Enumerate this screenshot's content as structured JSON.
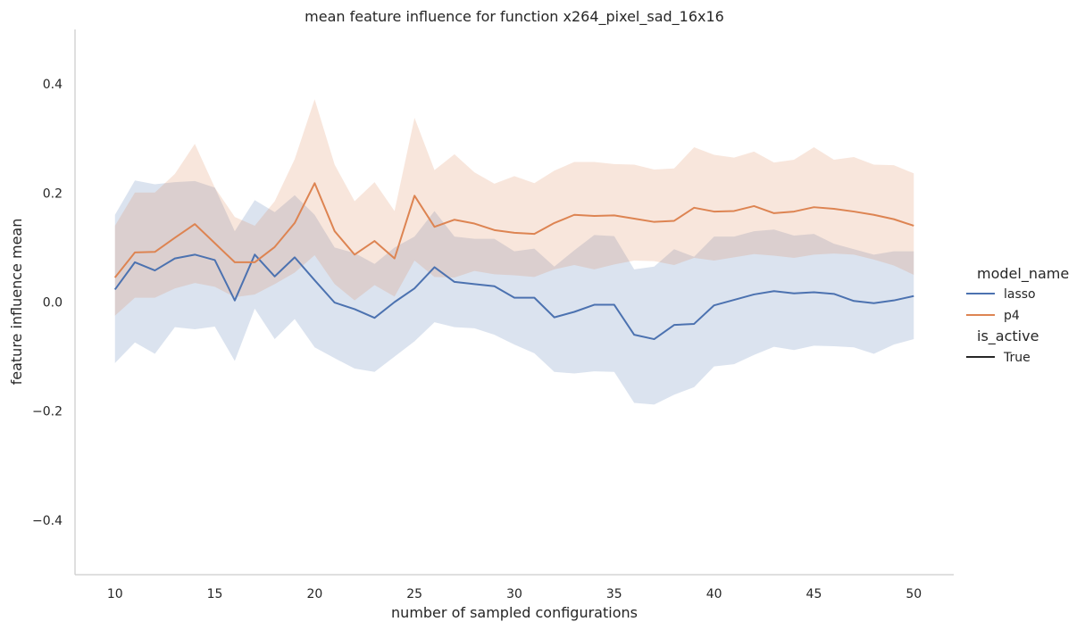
{
  "chart_data": {
    "type": "line",
    "title": "mean feature influence for function x264_pixel_sad_16x16",
    "xlabel": "number of sampled configurations",
    "ylabel": "feature influence mean",
    "xlim": [
      8,
      52
    ],
    "ylim": [
      -0.5,
      0.5
    ],
    "xticks": [
      10,
      15,
      20,
      25,
      30,
      35,
      40,
      45,
      50
    ],
    "xtick_labels": [
      "10",
      "15",
      "20",
      "25",
      "30",
      "35",
      "40",
      "45",
      "50"
    ],
    "yticks": [
      -0.4,
      -0.2,
      0.0,
      0.2,
      0.4
    ],
    "ytick_labels": [
      "−0.4",
      "−0.2",
      "0.0",
      "0.2",
      "0.4"
    ],
    "grid": false,
    "legend": {
      "placement": "right",
      "hue_title": "model_name",
      "style_title": "is_active",
      "style_entries": [
        "True"
      ]
    },
    "x": [
      10,
      11,
      12,
      13,
      14,
      15,
      16,
      17,
      18,
      19,
      20,
      21,
      22,
      23,
      24,
      25,
      26,
      27,
      28,
      29,
      30,
      31,
      32,
      33,
      34,
      35,
      36,
      37,
      38,
      39,
      40,
      41,
      42,
      43,
      44,
      45,
      46,
      47,
      48,
      49,
      50
    ],
    "series": [
      {
        "name": "lasso",
        "color": "#4c72b0",
        "values": [
          0.023,
          0.073,
          0.058,
          0.08,
          0.087,
          0.077,
          0.003,
          0.087,
          0.047,
          0.082,
          0.04,
          -0.001,
          -0.013,
          -0.029,
          0.0,
          0.025,
          0.064,
          0.037,
          0.033,
          0.029,
          0.008,
          0.008,
          -0.028,
          -0.018,
          -0.005,
          -0.005,
          -0.06,
          -0.068,
          -0.042,
          -0.04,
          -0.006,
          0.004,
          0.014,
          0.02,
          0.016,
          0.018,
          0.015,
          0.002,
          -0.002,
          0.003,
          0.011
        ],
        "upper": [
          0.16,
          0.223,
          0.216,
          0.22,
          0.222,
          0.21,
          0.13,
          0.187,
          0.165,
          0.196,
          0.16,
          0.1,
          0.09,
          0.07,
          0.1,
          0.12,
          0.167,
          0.12,
          0.116,
          0.116,
          0.093,
          0.098,
          0.065,
          0.095,
          0.123,
          0.121,
          0.06,
          0.065,
          0.097,
          0.083,
          0.12,
          0.12,
          0.13,
          0.133,
          0.122,
          0.125,
          0.107,
          0.097,
          0.087,
          0.093,
          0.093
        ],
        "lower": [
          -0.112,
          -0.074,
          -0.095,
          -0.046,
          -0.05,
          -0.045,
          -0.108,
          -0.012,
          -0.068,
          -0.031,
          -0.083,
          -0.103,
          -0.122,
          -0.128,
          -0.1,
          -0.072,
          -0.037,
          -0.046,
          -0.048,
          -0.06,
          -0.078,
          -0.094,
          -0.128,
          -0.131,
          -0.127,
          -0.128,
          -0.185,
          -0.188,
          -0.17,
          -0.156,
          -0.118,
          -0.114,
          -0.097,
          -0.082,
          -0.088,
          -0.08,
          -0.081,
          -0.083,
          -0.095,
          -0.078,
          -0.068
        ]
      },
      {
        "name": "p4",
        "color": "#dd8452",
        "values": [
          0.045,
          0.091,
          0.092,
          0.118,
          0.143,
          0.108,
          0.073,
          0.073,
          0.101,
          0.145,
          0.218,
          0.13,
          0.087,
          0.112,
          0.08,
          0.195,
          0.138,
          0.151,
          0.144,
          0.132,
          0.127,
          0.125,
          0.145,
          0.16,
          0.158,
          0.159,
          0.153,
          0.147,
          0.149,
          0.173,
          0.166,
          0.167,
          0.176,
          0.163,
          0.166,
          0.174,
          0.171,
          0.166,
          0.16,
          0.152,
          0.14
        ],
        "upper": [
          0.14,
          0.201,
          0.201,
          0.235,
          0.29,
          0.21,
          0.156,
          0.14,
          0.185,
          0.262,
          0.372,
          0.252,
          0.185,
          0.22,
          0.167,
          0.338,
          0.242,
          0.271,
          0.238,
          0.217,
          0.231,
          0.218,
          0.241,
          0.257,
          0.257,
          0.253,
          0.252,
          0.243,
          0.245,
          0.284,
          0.27,
          0.265,
          0.276,
          0.256,
          0.261,
          0.284,
          0.261,
          0.266,
          0.252,
          0.251,
          0.236
        ],
        "lower": [
          -0.025,
          0.008,
          0.008,
          0.025,
          0.035,
          0.028,
          0.009,
          0.014,
          0.033,
          0.054,
          0.086,
          0.033,
          0.003,
          0.031,
          0.01,
          0.076,
          0.046,
          0.045,
          0.057,
          0.051,
          0.049,
          0.046,
          0.06,
          0.068,
          0.06,
          0.069,
          0.076,
          0.075,
          0.068,
          0.081,
          0.076,
          0.082,
          0.088,
          0.085,
          0.081,
          0.087,
          0.089,
          0.087,
          0.078,
          0.067,
          0.05
        ]
      }
    ]
  }
}
